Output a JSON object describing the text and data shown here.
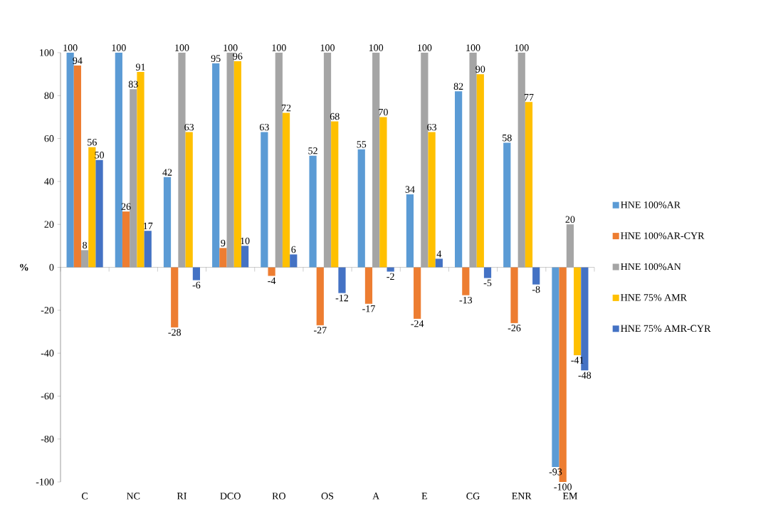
{
  "chart_data": {
    "type": "bar",
    "ylabel": "%",
    "categories": [
      "C",
      "NC",
      "RI",
      "DCO",
      "RO",
      "OS",
      "A",
      "E",
      "CG",
      "ENR",
      "EM"
    ],
    "series": [
      {
        "name": "HNE 100%AR",
        "color": "#5b9bd5",
        "values": [
          100,
          100,
          42,
          95,
          63,
          52,
          55,
          34,
          82,
          58,
          -93
        ]
      },
      {
        "name": "HNE 100%AR-CYR",
        "color": "#ed7d31",
        "values": [
          94,
          26,
          -28,
          9,
          -4,
          -27,
          -17,
          -24,
          -13,
          -26,
          -100
        ]
      },
      {
        "name": "HNE 100%AN",
        "color": "#a5a5a5",
        "values": [
          8,
          83,
          100,
          100,
          100,
          100,
          100,
          100,
          100,
          100,
          20
        ]
      },
      {
        "name": "HNE 75% AMR",
        "color": "#ffc000",
        "values": [
          56,
          91,
          63,
          96,
          72,
          68,
          70,
          63,
          90,
          77,
          -41
        ]
      },
      {
        "name": "HNE 75% AMR-CYR",
        "color": "#4472c4",
        "values": [
          50,
          17,
          -6,
          10,
          6,
          -12,
          -2,
          4,
          -5,
          -8,
          -48
        ]
      }
    ],
    "ylim": [
      -100,
      100
    ],
    "yticks": [
      -100,
      -80,
      -60,
      -40,
      -20,
      0,
      20,
      40,
      60,
      80,
      100
    ],
    "data_labels": true,
    "legend": "right"
  }
}
